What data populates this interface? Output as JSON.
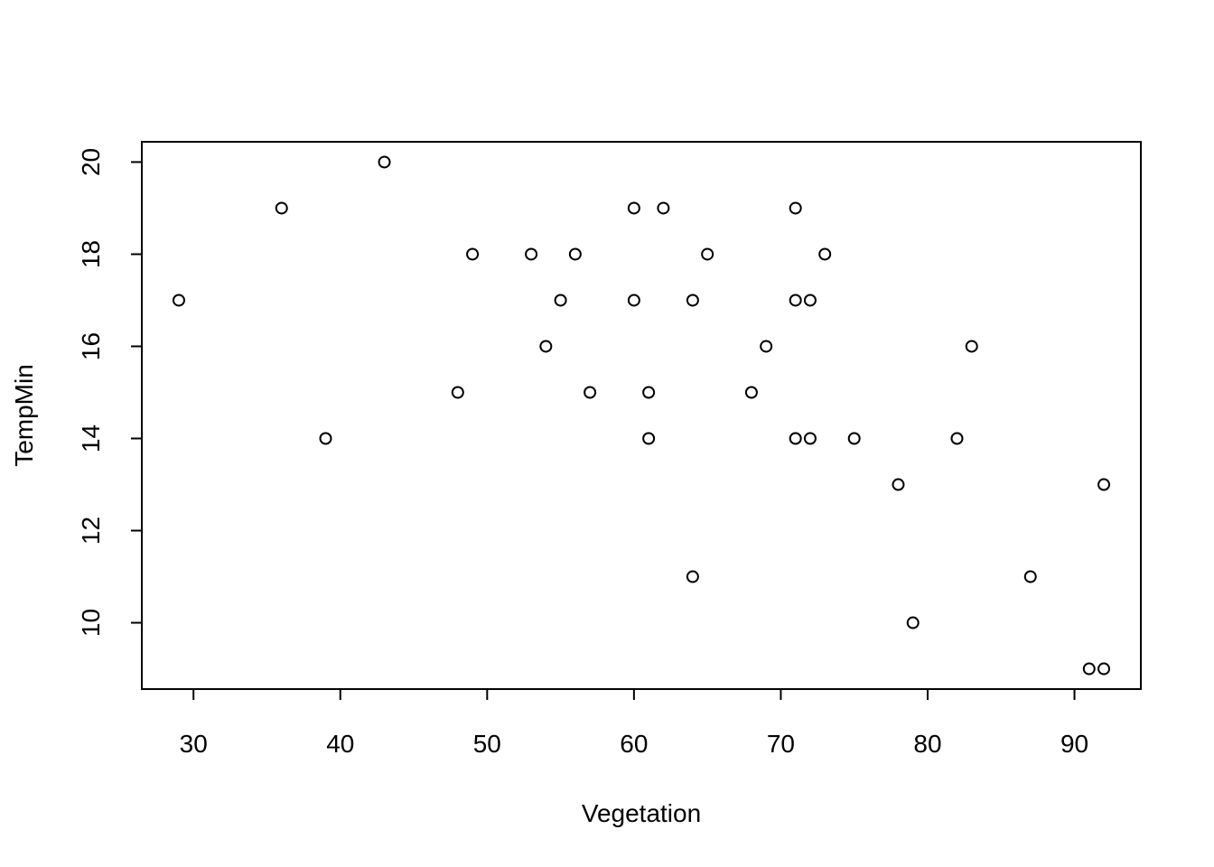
{
  "chart_data": {
    "type": "scatter",
    "x_label": "Vegetation",
    "y_label": "TempMin",
    "x": [
      29,
      36,
      39,
      43,
      48,
      49,
      53,
      54,
      55,
      56,
      57,
      60,
      60,
      61,
      61,
      62,
      64,
      64,
      65,
      68,
      69,
      71,
      71,
      71,
      72,
      72,
      73,
      75,
      78,
      79,
      82,
      83,
      87,
      91,
      92,
      92
    ],
    "values": [
      17,
      19,
      14,
      20,
      15,
      18,
      18,
      16,
      17,
      18,
      15,
      19,
      17,
      15,
      14,
      19,
      17,
      11,
      18,
      15,
      16,
      19,
      17,
      14,
      17,
      14,
      18,
      14,
      13,
      10,
      14,
      16,
      11,
      9,
      9,
      13
    ],
    "color": "#000000",
    "xlim": [
      26.48,
      94.52
    ],
    "ylim": [
      8.56,
      20.44
    ],
    "xticks": [
      30,
      40,
      50,
      60,
      70,
      80,
      90
    ],
    "yticks": [
      10,
      12,
      14,
      16,
      18,
      20
    ]
  }
}
